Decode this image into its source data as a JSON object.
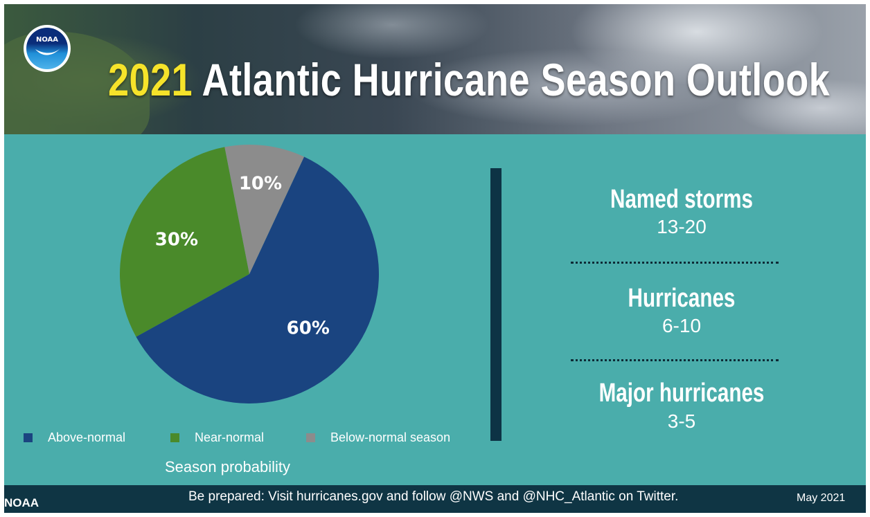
{
  "header": {
    "logo_text": "NOAA",
    "title_year": "2021",
    "title_rest": "Atlantic Hurricane Season Outlook"
  },
  "chart_data": {
    "type": "pie",
    "title": "Season probability",
    "categories": [
      "Above-normal",
      "Near-normal",
      "Below-normal season"
    ],
    "values": [
      60,
      30,
      10
    ],
    "unit": "%",
    "data_labels": [
      "60%",
      "30%",
      "10%"
    ],
    "colors": [
      "#1a4480",
      "#4a8a2a",
      "#8c8c8c"
    ],
    "legend_position": "bottom"
  },
  "stats": [
    {
      "label": "Named storms",
      "value": "13-20"
    },
    {
      "label": "Hurricanes",
      "value": "6-10"
    },
    {
      "label": "Major hurricanes",
      "value": "3-5"
    }
  ],
  "footer": {
    "org": "NOAA",
    "message": "Be prepared: Visit hurricanes.gov and follow @NWS and @NHC_Atlantic on Twitter.",
    "date": "May 2021"
  },
  "colors": {
    "background": "#4aadab",
    "footer": "#0f3544",
    "divider": "#0d3345",
    "title_year": "#f6e32a"
  }
}
